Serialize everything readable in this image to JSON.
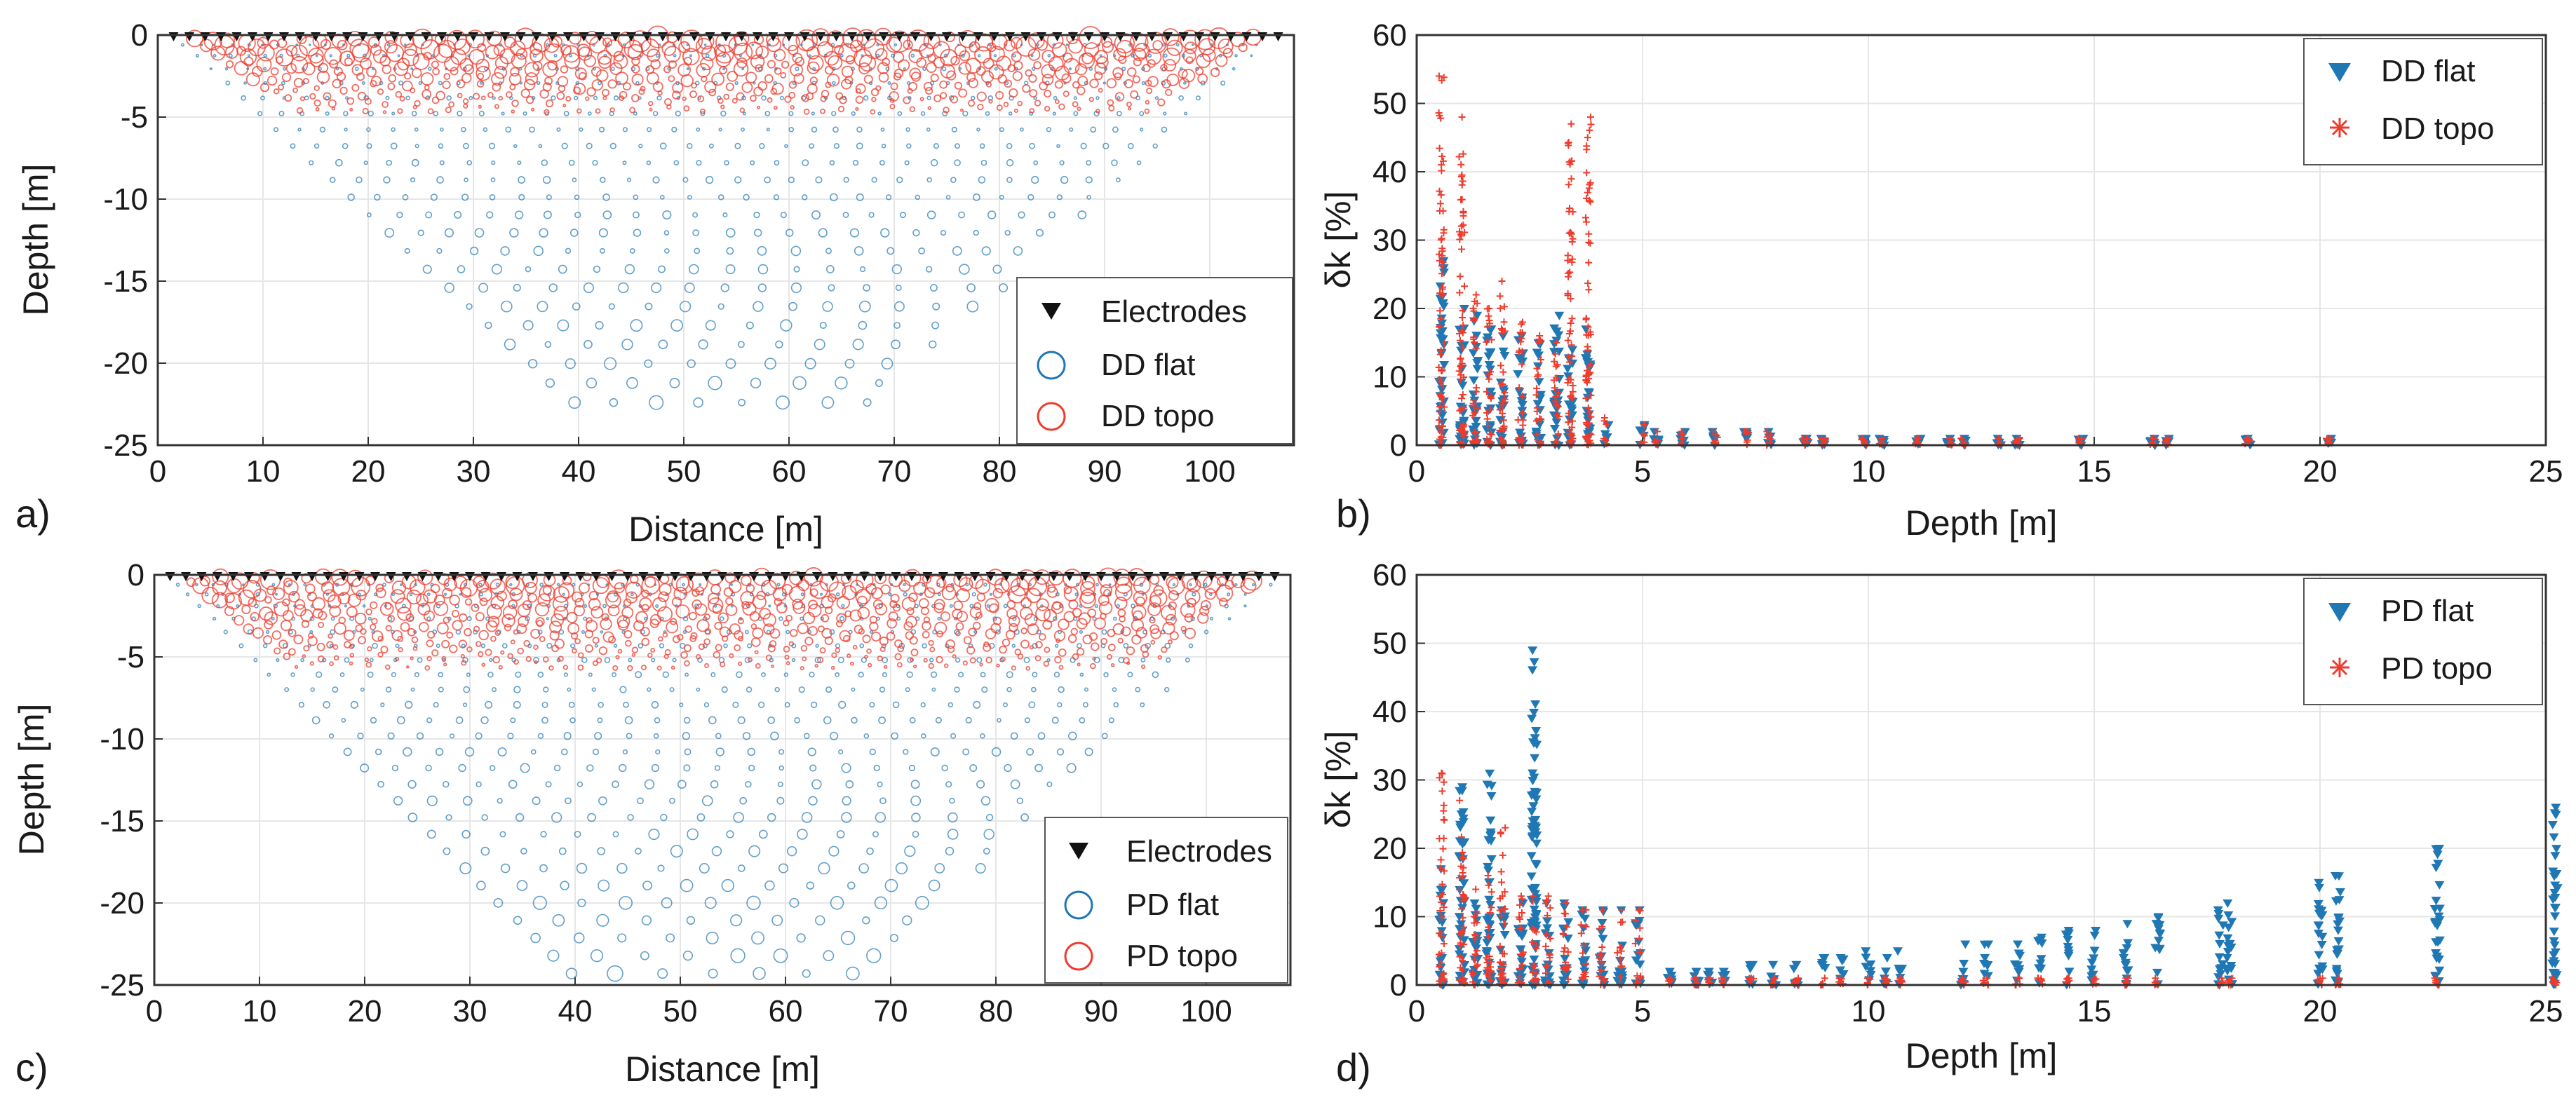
{
  "colors": {
    "flat": "#1f77b4",
    "topo": "#ef3b2c",
    "electrode": "#111111",
    "grid": "#e6e6e6",
    "axis": "#333333"
  },
  "panels": [
    {
      "label": "a)",
      "legend": {
        "electrodes": "Electrodes",
        "flat": "DD flat",
        "topo": "DD topo"
      }
    },
    {
      "label": "b)",
      "legend": {
        "flat": "DD flat",
        "topo": "DD topo"
      }
    },
    {
      "label": "c)",
      "legend": {
        "electrodes": "Electrodes",
        "flat": "PD flat",
        "topo": "PD topo"
      }
    },
    {
      "label": "d)",
      "legend": {
        "flat": "PD flat",
        "topo": "PD topo"
      }
    }
  ],
  "chart_data": [
    {
      "type": "scatter",
      "panel": "a)",
      "xlabel": "Distance [m]",
      "ylabel": "Depth [m]",
      "xlim": [
        0,
        108
      ],
      "ylim": [
        -25,
        0
      ],
      "xticks": [
        0,
        10,
        20,
        30,
        40,
        50,
        60,
        70,
        80,
        90,
        100
      ],
      "yticks": [
        0,
        -5,
        -10,
        -15,
        -20,
        -25
      ],
      "grid": true,
      "legend_position": "bottom-right",
      "series": [
        {
          "name": "Electrodes",
          "marker": "triangle-down",
          "x_range": [
            1.5,
            107
          ],
          "spacing_m": 1.5,
          "depth": 0
        },
        {
          "name": "DD flat",
          "marker": "circle-open",
          "pseudosection": {
            "x_start": 1.5,
            "x_end": 107,
            "max_depth": -22.4
          }
        },
        {
          "name": "DD topo",
          "marker": "circle-open",
          "pseudosection": {
            "x_start": 1.5,
            "x_end": 107,
            "max_depth": -4.5
          }
        }
      ]
    },
    {
      "type": "scatter",
      "panel": "b)",
      "xlabel": "Depth [m]",
      "ylabel": "δk [%]",
      "xlim": [
        0,
        25
      ],
      "ylim": [
        0,
        60
      ],
      "xticks": [
        0,
        5,
        10,
        15,
        20,
        25
      ],
      "yticks": [
        0,
        10,
        20,
        30,
        40,
        50,
        60
      ],
      "grid": true,
      "legend_position": "top-right",
      "series": [
        {
          "name": "DD flat",
          "marker": "triangle-down",
          "columns": [
            [
              0.55,
              27
            ],
            [
              1.0,
              20
            ],
            [
              1.3,
              19
            ],
            [
              1.6,
              17
            ],
            [
              1.9,
              16
            ],
            [
              2.3,
              16
            ],
            [
              2.7,
              15
            ],
            [
              3.1,
              19
            ],
            [
              3.4,
              14
            ],
            [
              3.8,
              17
            ],
            [
              4.2,
              3
            ],
            [
              5.0,
              3
            ],
            [
              5.3,
              2
            ],
            [
              5.9,
              2
            ],
            [
              6.6,
              2
            ],
            [
              7.3,
              2
            ],
            [
              7.8,
              2
            ],
            [
              8.6,
              1
            ],
            [
              9.0,
              1
            ],
            [
              9.9,
              1
            ],
            [
              10.3,
              1
            ],
            [
              11.1,
              1
            ],
            [
              11.8,
              1
            ],
            [
              12.1,
              1
            ],
            [
              12.9,
              1
            ],
            [
              13.3,
              1
            ],
            [
              14.7,
              1
            ],
            [
              16.3,
              1
            ],
            [
              16.6,
              1
            ],
            [
              18.4,
              1
            ],
            [
              20.2,
              1
            ]
          ]
        },
        {
          "name": "DD topo",
          "marker": "asterisk",
          "columns": [
            [
              0.55,
              54
            ],
            [
              1.0,
              48
            ],
            [
              1.3,
              22
            ],
            [
              1.6,
              20
            ],
            [
              1.9,
              24
            ],
            [
              2.3,
              18
            ],
            [
              2.7,
              16
            ],
            [
              3.1,
              15
            ],
            [
              3.4,
              47
            ],
            [
              3.8,
              48
            ],
            [
              4.2,
              4
            ],
            [
              5.0,
              3
            ],
            [
              5.3,
              2
            ],
            [
              5.9,
              2
            ],
            [
              6.6,
              2
            ],
            [
              7.3,
              2
            ],
            [
              7.8,
              2
            ],
            [
              8.6,
              1
            ],
            [
              9.0,
              1
            ],
            [
              9.9,
              1
            ],
            [
              10.3,
              1
            ],
            [
              11.1,
              1
            ],
            [
              11.8,
              1
            ],
            [
              12.1,
              1
            ],
            [
              12.9,
              1
            ],
            [
              13.3,
              1
            ],
            [
              14.7,
              1
            ],
            [
              16.3,
              1
            ],
            [
              16.6,
              1
            ],
            [
              18.4,
              1
            ],
            [
              20.2,
              1
            ]
          ]
        }
      ]
    },
    {
      "type": "scatter",
      "panel": "c)",
      "xlabel": "Distance [m]",
      "ylabel": "Depth [m]",
      "xlim": [
        0,
        108
      ],
      "ylim": [
        -25,
        0
      ],
      "xticks": [
        0,
        10,
        20,
        30,
        40,
        50,
        60,
        70,
        80,
        90,
        100
      ],
      "yticks": [
        0,
        -5,
        -10,
        -15,
        -20,
        -25
      ],
      "grid": true,
      "legend_position": "bottom-right",
      "series": [
        {
          "name": "Electrodes",
          "marker": "triangle-down",
          "x_range": [
            1.5,
            107
          ],
          "spacing_m": 1.5,
          "depth": 0
        },
        {
          "name": "PD flat",
          "marker": "circle-open",
          "pseudosection": {
            "x_start": 1.5,
            "x_end": 107,
            "max_depth": -24.3
          }
        },
        {
          "name": "PD topo",
          "marker": "circle-open",
          "pseudosection": {
            "x_start": 1.5,
            "x_end": 107,
            "max_depth": -5.5
          }
        }
      ]
    },
    {
      "type": "scatter",
      "panel": "d)",
      "xlabel": "Depth [m]",
      "ylabel": "δk [%]",
      "xlim": [
        0,
        25
      ],
      "ylim": [
        0,
        60
      ],
      "xticks": [
        0,
        5,
        10,
        15,
        20,
        25
      ],
      "yticks": [
        0,
        10,
        20,
        30,
        40,
        50,
        60
      ],
      "grid": true,
      "legend_position": "top-right",
      "series": [
        {
          "name": "PD flat",
          "marker": "triangle-down",
          "columns": [
            [
              0.55,
              17
            ],
            [
              1.0,
              29
            ],
            [
              1.3,
              12
            ],
            [
              1.6,
              31
            ],
            [
              1.9,
              11
            ],
            [
              2.3,
              12
            ],
            [
              2.6,
              49
            ],
            [
              2.9,
              12
            ],
            [
              3.3,
              12
            ],
            [
              3.7,
              11
            ],
            [
              4.1,
              11
            ],
            [
              4.5,
              11
            ],
            [
              4.9,
              11
            ],
            [
              5.6,
              2
            ],
            [
              6.2,
              2
            ],
            [
              6.5,
              2
            ],
            [
              6.8,
              2
            ],
            [
              7.4,
              3
            ],
            [
              7.9,
              3
            ],
            [
              8.4,
              3
            ],
            [
              9.0,
              4
            ],
            [
              9.4,
              4
            ],
            [
              10.0,
              5
            ],
            [
              10.4,
              4
            ],
            [
              10.7,
              5
            ],
            [
              12.1,
              6
            ],
            [
              12.6,
              6
            ],
            [
              13.3,
              6
            ],
            [
              13.8,
              7
            ],
            [
              14.4,
              8
            ],
            [
              15.0,
              8
            ],
            [
              15.7,
              9
            ],
            [
              16.4,
              10
            ],
            [
              17.8,
              11
            ],
            [
              18.0,
              12
            ],
            [
              20.0,
              15
            ],
            [
              20.4,
              16
            ],
            [
              22.6,
              20
            ],
            [
              25.2,
              26
            ]
          ]
        },
        {
          "name": "PD topo",
          "marker": "asterisk",
          "columns": [
            [
              0.55,
              31
            ],
            [
              1.0,
              27
            ],
            [
              1.3,
              14
            ],
            [
              1.6,
              16
            ],
            [
              1.9,
              23
            ],
            [
              2.3,
              13
            ],
            [
              2.6,
              13
            ],
            [
              2.9,
              13
            ],
            [
              3.3,
              12
            ],
            [
              3.7,
              11
            ],
            [
              4.1,
              11
            ],
            [
              4.5,
              11
            ],
            [
              4.9,
              11
            ],
            [
              5.6,
              1
            ],
            [
              6.2,
              1
            ],
            [
              6.5,
              1
            ],
            [
              6.8,
              1
            ],
            [
              7.4,
              1
            ],
            [
              7.9,
              1
            ],
            [
              8.4,
              1
            ],
            [
              9.0,
              1
            ],
            [
              9.4,
              1
            ],
            [
              10.0,
              1
            ],
            [
              10.4,
              1
            ],
            [
              10.7,
              1
            ],
            [
              12.1,
              1
            ],
            [
              12.6,
              1
            ],
            [
              13.3,
              1
            ],
            [
              13.8,
              1
            ],
            [
              14.4,
              1
            ],
            [
              15.0,
              1
            ],
            [
              15.7,
              1
            ],
            [
              16.4,
              1
            ],
            [
              17.8,
              1
            ],
            [
              18.0,
              1
            ],
            [
              20.0,
              1
            ],
            [
              20.4,
              1
            ],
            [
              22.6,
              1
            ],
            [
              25.2,
              1
            ]
          ]
        }
      ]
    }
  ]
}
